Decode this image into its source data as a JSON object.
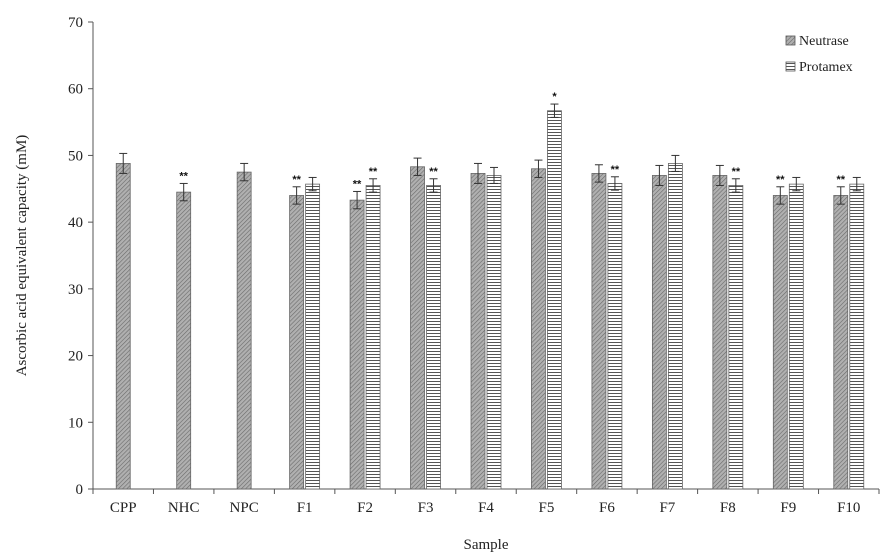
{
  "chart_data": {
    "type": "bar",
    "title": "",
    "xlabel": "Sample",
    "ylabel": "Ascorbic acid equivalent capacity (mM)",
    "ylim": [
      0,
      70
    ],
    "yticks": [
      0,
      10,
      20,
      30,
      40,
      50,
      60,
      70
    ],
    "grid": false,
    "legend_position": "top-right",
    "categories": [
      "CPP",
      "NHC",
      "NPC",
      "F1",
      "F2",
      "F3",
      "F4",
      "F5",
      "F6",
      "F7",
      "F8",
      "F9",
      "F10"
    ],
    "series": [
      {
        "name": "Neutrase",
        "pattern": "diagonal-hatch",
        "color": "#999999",
        "values": [
          48.8,
          44.5,
          47.5,
          44.0,
          43.3,
          48.3,
          47.3,
          48.0,
          47.3,
          47.0,
          47.0,
          44.0,
          44.0
        ],
        "errors": [
          1.5,
          1.3,
          1.3,
          1.3,
          1.3,
          1.3,
          1.5,
          1.3,
          1.3,
          1.5,
          1.5,
          1.3,
          1.3
        ],
        "significance": [
          "",
          "**",
          "",
          "**",
          "**",
          "",
          "",
          "",
          "",
          "",
          "",
          "**",
          "**"
        ]
      },
      {
        "name": "Protamex",
        "pattern": "horizontal-stripes",
        "color": "#777777",
        "values": [
          null,
          null,
          null,
          45.7,
          45.5,
          45.5,
          47.0,
          56.7,
          45.8,
          48.8,
          45.5,
          45.7,
          45.7
        ],
        "errors": [
          null,
          null,
          null,
          1.0,
          1.0,
          1.0,
          1.2,
          1.0,
          1.0,
          1.2,
          1.0,
          1.0,
          1.0
        ],
        "significance": [
          "",
          "",
          "",
          "",
          "**",
          "**",
          "",
          "*",
          "**",
          "",
          "**",
          "",
          ""
        ]
      }
    ]
  }
}
